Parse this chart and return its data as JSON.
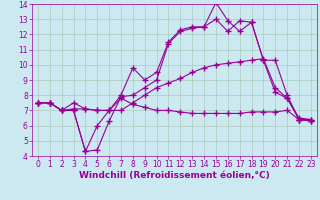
{
  "background_color": "#cce8f0",
  "grid_color": "#aaccbb",
  "line_color": "#990099",
  "marker": "+",
  "marker_size": 4,
  "marker_lw": 1.0,
  "line_width": 0.8,
  "xlim": [
    -0.5,
    23.5
  ],
  "ylim": [
    4,
    14
  ],
  "xticks": [
    0,
    1,
    2,
    3,
    4,
    5,
    6,
    7,
    8,
    9,
    10,
    11,
    12,
    13,
    14,
    15,
    16,
    17,
    18,
    19,
    20,
    21,
    22,
    23
  ],
  "yticks": [
    4,
    5,
    6,
    7,
    8,
    9,
    10,
    11,
    12,
    13,
    14
  ],
  "xlabel": "Windchill (Refroidissement éolien,°C)",
  "xlabel_fontsize": 6.5,
  "tick_fontsize": 5.5,
  "series": [
    [
      7.5,
      7.5,
      7.0,
      7.0,
      4.3,
      4.4,
      6.3,
      7.9,
      8.0,
      8.5,
      9.0,
      11.4,
      12.2,
      12.4,
      12.5,
      14.1,
      12.9,
      12.2,
      12.8,
      10.3,
      8.2,
      7.8,
      6.4,
      6.4
    ],
    [
      7.5,
      7.5,
      7.0,
      7.1,
      7.1,
      7.0,
      7.0,
      7.0,
      7.5,
      8.0,
      8.5,
      8.8,
      9.1,
      9.5,
      9.8,
      10.0,
      10.1,
      10.2,
      10.3,
      10.4,
      8.5,
      7.8,
      6.5,
      6.4
    ],
    [
      7.5,
      7.5,
      7.0,
      7.0,
      4.3,
      6.0,
      7.0,
      7.8,
      7.4,
      7.2,
      7.0,
      7.0,
      6.9,
      6.8,
      6.8,
      6.8,
      6.8,
      6.8,
      6.9,
      6.9,
      6.9,
      7.0,
      6.4,
      6.3
    ],
    [
      7.5,
      7.5,
      7.0,
      7.5,
      7.1,
      7.0,
      7.0,
      8.0,
      9.8,
      9.0,
      9.5,
      11.5,
      12.3,
      12.5,
      12.5,
      13.0,
      12.2,
      12.9,
      12.8,
      10.3,
      10.3,
      8.0,
      6.4,
      6.3
    ]
  ]
}
